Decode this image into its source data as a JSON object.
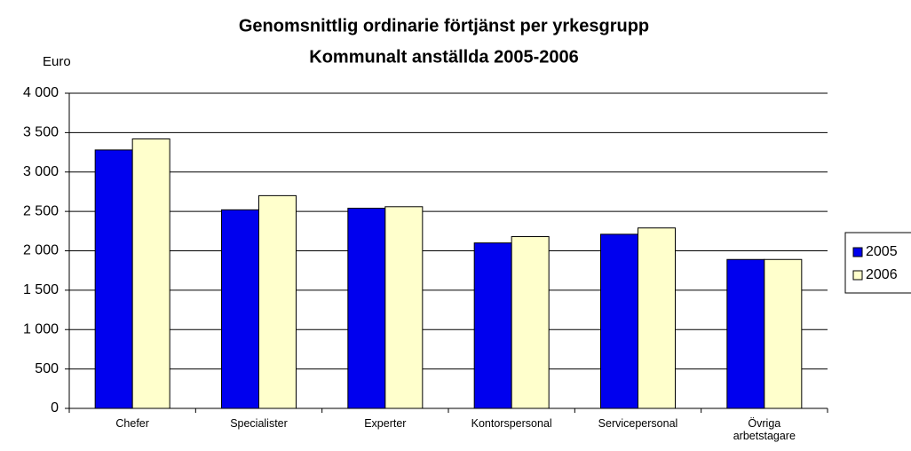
{
  "chart_data": {
    "type": "bar",
    "title": "Genomsnittlig ordinarie förtjänst per yrkesgrupp",
    "subtitle": "Kommunalt anställda 2005-2006",
    "y_label": "Euro",
    "categories": [
      "Chefer",
      "Specialister",
      "Experter",
      "Kontorspersonal",
      "Servicepersonal",
      "Övriga arbetstagare"
    ],
    "series": [
      {
        "name": "2005",
        "color": "#0000ee",
        "values": [
          3280,
          2520,
          2540,
          2100,
          2210,
          1890
        ]
      },
      {
        "name": "2006",
        "color": "#ffffcc",
        "values": [
          3420,
          2700,
          2560,
          2180,
          2290,
          1890
        ]
      }
    ],
    "ylim": [
      0,
      4000
    ],
    "yticks": [
      0,
      500,
      {
        "value": 1000,
        "label": "1 000"
      },
      {
        "value": 1500,
        "label": "1 500"
      },
      {
        "value": 2000,
        "label": "2 000"
      },
      {
        "value": 2500,
        "label": "2 500"
      },
      {
        "value": 3000,
        "label": "3 000"
      },
      {
        "value": 3500,
        "label": "3 500"
      },
      {
        "value": 4000,
        "label": "4 000"
      }
    ],
    "grid": true,
    "legend": "right"
  }
}
